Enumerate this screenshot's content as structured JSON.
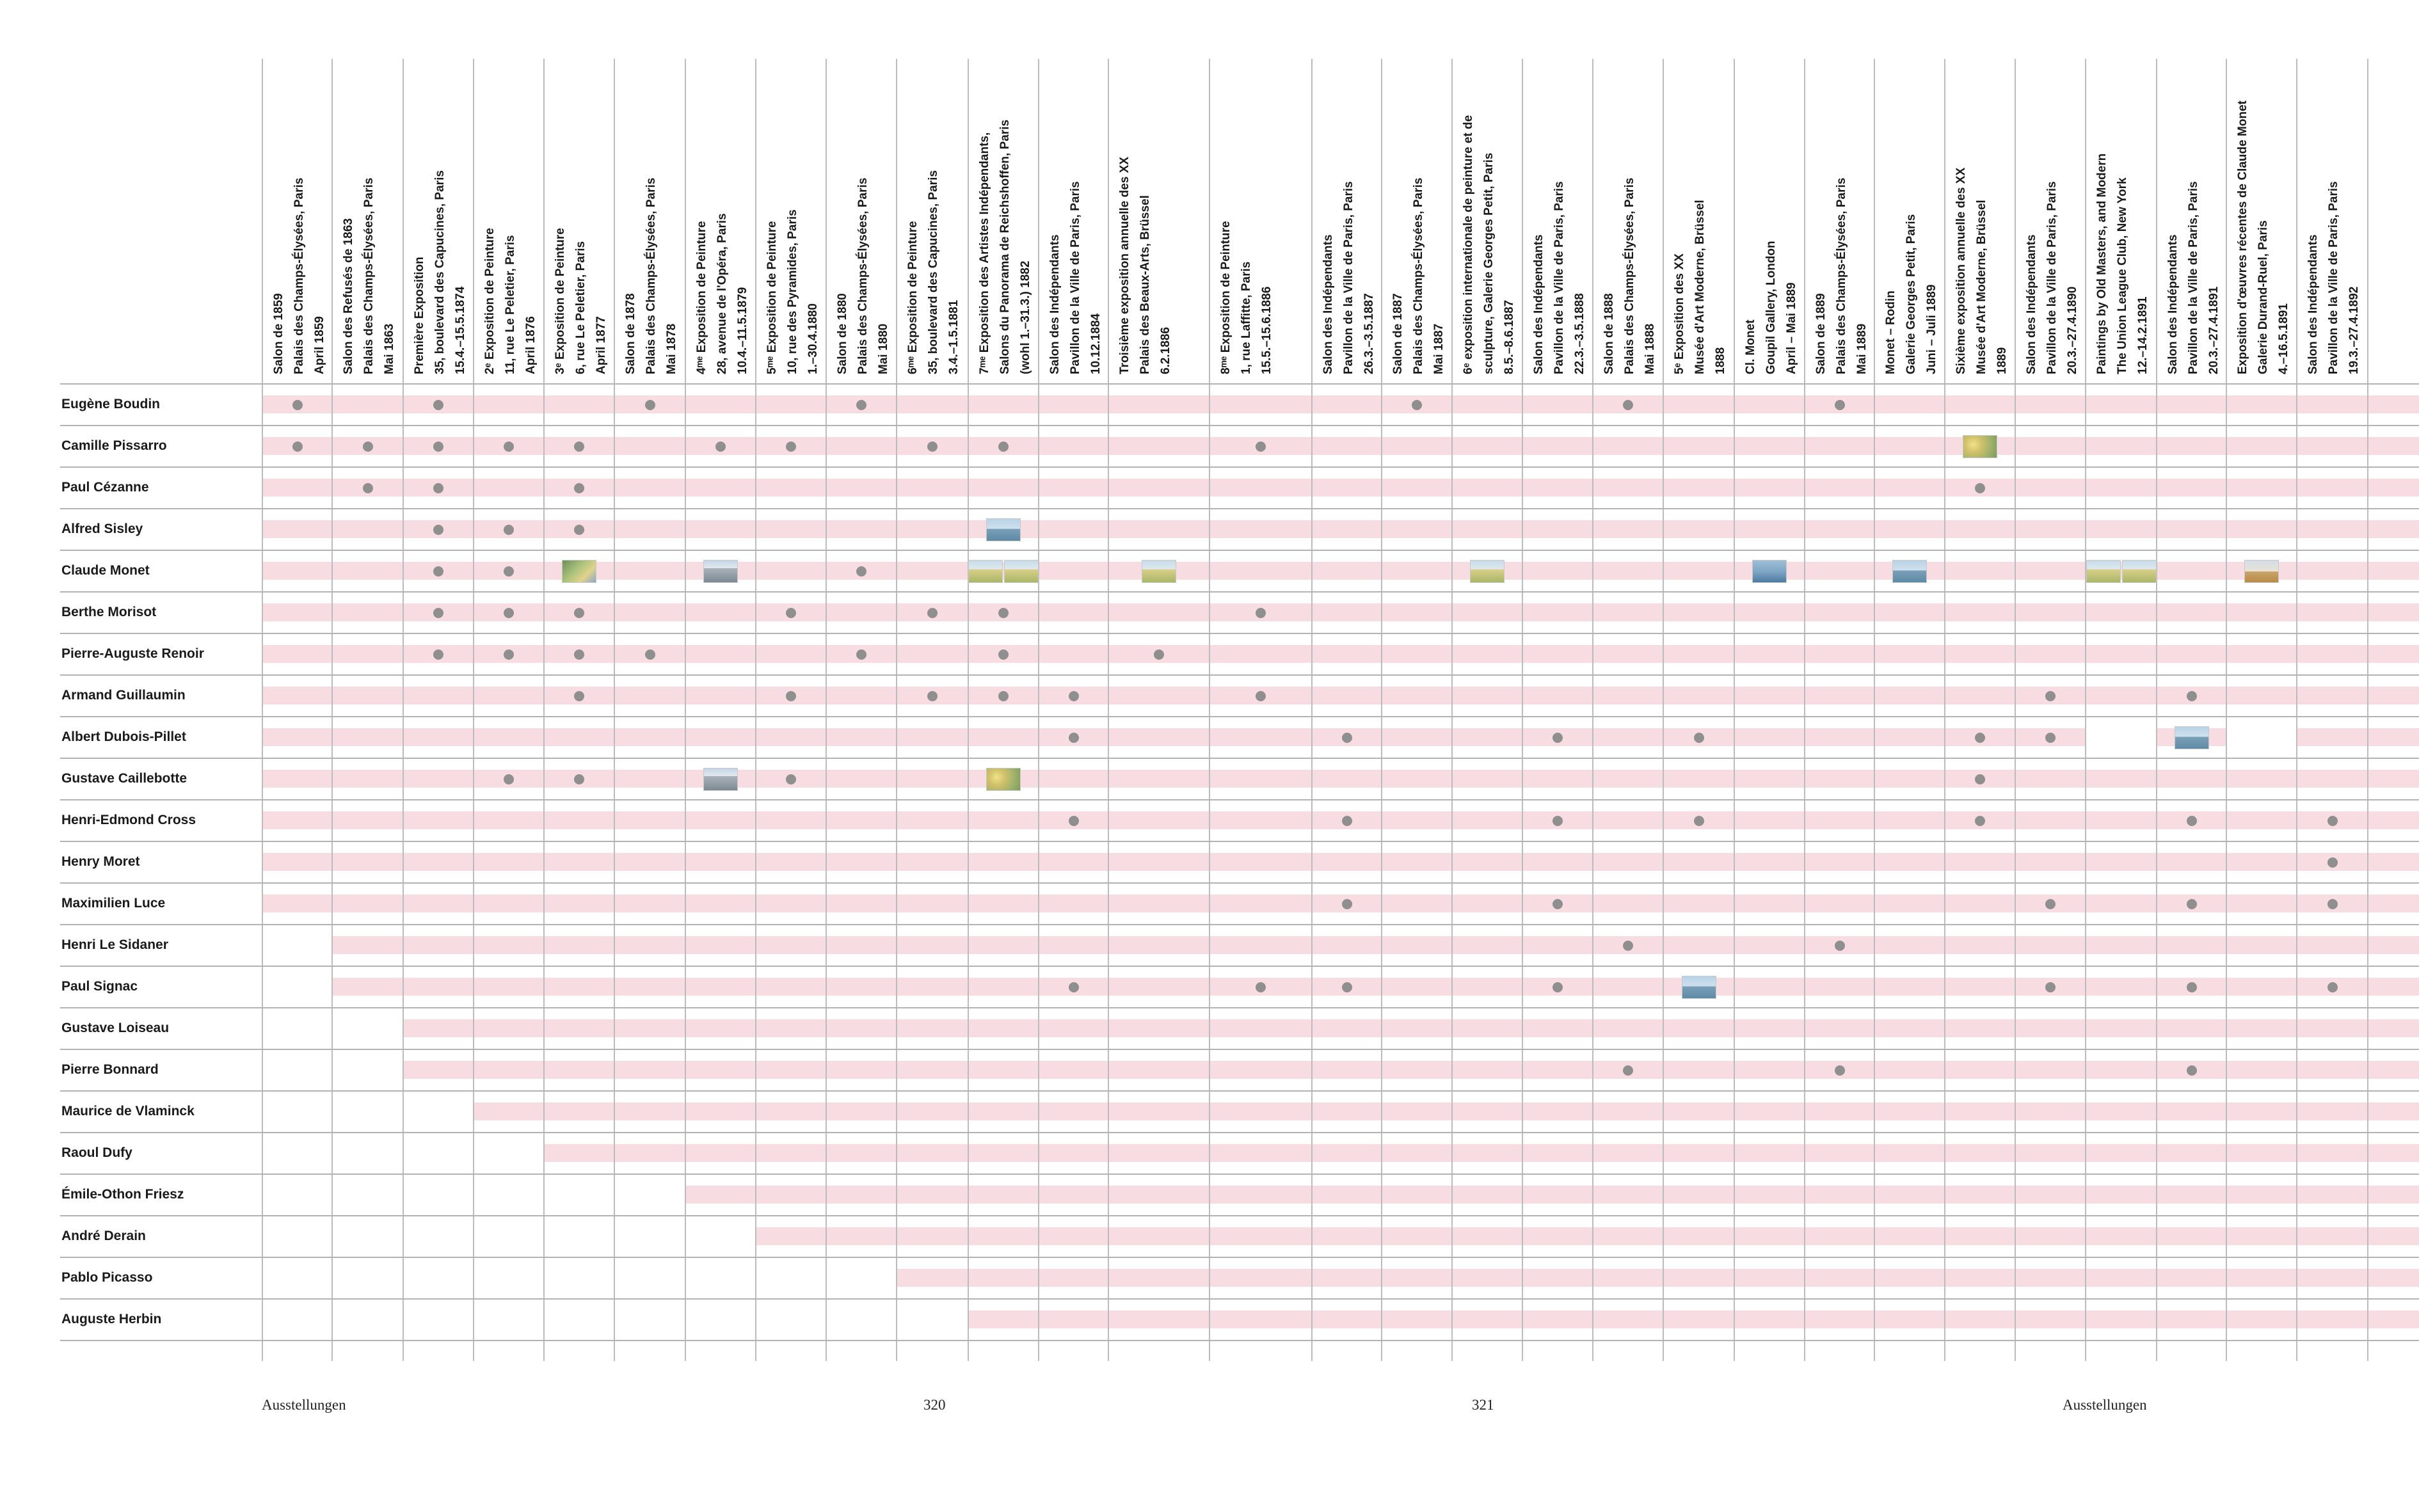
{
  "columns": [
    {
      "lines": [
        "Salon de 1859",
        "Palais des Champs-Élysées, Paris",
        "April 1859"
      ]
    },
    {
      "lines": [
        "Salon des Refusés de 1863",
        "Palais des Champs-Élysées, Paris",
        "Mai 1863"
      ]
    },
    {
      "lines": [
        "Première Exposition",
        "35, boulevard des Capucines, Paris",
        "15.4.–15.5.1874"
      ]
    },
    {
      "lines": [
        "2ᵉ Exposition de Peinture",
        "11, rue Le Peletier, Paris",
        "April 1876"
      ]
    },
    {
      "lines": [
        "3ᵉ Exposition de Peinture",
        "6, rue Le Peletier, Paris",
        "April 1877"
      ]
    },
    {
      "lines": [
        "Salon de 1878",
        "Palais des Champs-Élysées, Paris",
        "Mai 1878"
      ]
    },
    {
      "lines": [
        "4ᵐᵉ Exposition de Peinture",
        "28, avenue de l'Opéra, Paris",
        "10.4.–11.5.1879"
      ]
    },
    {
      "lines": [
        "5ᵐᵉ Exposition de Peinture",
        "10, rue des Pyramides, Paris",
        "1.–30.4.1880"
      ]
    },
    {
      "lines": [
        "Salon de 1880",
        "Palais des Champs-Élysées, Paris",
        "Mai 1880"
      ]
    },
    {
      "lines": [
        "6ᵐᵉ Exposition de Peinture",
        "35, boulevard des Capucines, Paris",
        "3.4.–1.5.1881"
      ]
    },
    {
      "lines": [
        "7ᵐᵉ Exposition des Artistes Indépendants,",
        "Salons du Panorama de Reichshoffen, Paris",
        "(wohl 1.–31.3.) 1882"
      ]
    },
    {
      "lines": [
        "Salon des Indépendants",
        "Pavillon de la Ville de Paris, Paris",
        "10.12.1884"
      ]
    },
    {
      "lines": [
        "Troisième exposition annuelle des XX",
        "Palais des Beaux-Arts, Brüssel",
        "6.2.1886"
      ]
    },
    {
      "lines": [
        "8ᵐᵉ Exposition de Peinture",
        "1, rue Laffitte, Paris",
        "15.5.–15.6.1886"
      ]
    },
    {
      "lines": [
        "Salon des Indépendants",
        "Pavillon de la Ville de Paris, Paris",
        "26.3.–3.5.1887"
      ]
    },
    {
      "lines": [
        "Salon de 1887",
        "Palais des Champs-Élysées, Paris",
        "Mai 1887"
      ]
    },
    {
      "lines": [
        "6ᵉ exposition internationale de peinture et de",
        "sculpture, Galerie Georges Petit, Paris",
        "8.5.–8.6.1887"
      ]
    },
    {
      "lines": [
        "Salon des Indépendants",
        "Pavillon de la Ville de Paris, Paris",
        "22.3.–3.5.1888"
      ]
    },
    {
      "lines": [
        "Salon de 1888",
        "Palais des Champs-Élysées, Paris",
        "Mai 1888"
      ]
    },
    {
      "lines": [
        "5ᵉ Exposition des XX",
        "Musée d'Art Moderne, Brüssel",
        "1888"
      ]
    },
    {
      "lines": [
        "Cl. Monet",
        "Goupil Gallery, London",
        "April – Mai 1889"
      ]
    },
    {
      "lines": [
        "Salon de 1889",
        "Palais des Champs-Élysées, Paris",
        "Mai 1889"
      ]
    },
    {
      "lines": [
        "Monet – Rodin",
        "Galerie Georges Petit, Paris",
        "Juni – Juli 1889"
      ]
    },
    {
      "lines": [
        "Sixième exposition annuelle des XX",
        "Musée d'Art Moderne, Brüssel",
        "1889"
      ]
    },
    {
      "lines": [
        "Salon des Indépendants",
        "Pavillon de la Ville de Paris, Paris",
        "20.3.–27.4.1890"
      ]
    },
    {
      "lines": [
        "Paintings by Old Masters, and Modern",
        "The Union League Club, New York",
        "12.–14.2.1891"
      ]
    },
    {
      "lines": [
        "Salon des Indépendants",
        "Pavillon de la Ville de Paris, Paris",
        "20.3.–27.4.1891"
      ]
    },
    {
      "lines": [
        "Exposition d'œuvres récentes de Claude Monet",
        "Galerie Durand-Ruel, Paris",
        "4.–16.5.1891"
      ]
    },
    {
      "lines": [
        "Salon des Indépendants",
        "Pavillon de la Ville de Paris, Paris",
        "19.3.–27.4.1892"
      ]
    }
  ],
  "artists": [
    "Eugène Boudin",
    "Camille Pissarro",
    "Paul Cézanne",
    "Alfred Sisley",
    "Claude Monet",
    "Berthe Morisot",
    "Pierre-Auguste Renoir",
    "Armand Guillaumin",
    "Albert Dubois-Pillet",
    "Gustave Caillebotte",
    "Henri-Edmond Cross",
    "Henry Moret",
    "Maximilien Luce",
    "Henri Le Sidaner",
    "Paul Signac",
    "Gustave Loiseau",
    "Pierre Bonnard",
    "Maurice de Vlaminck",
    "Raoul Dufy",
    "Émile-Othon Friesz",
    "André Derain",
    "Pablo Picasso",
    "Auguste Herbin"
  ],
  "band_start_column": [
    0,
    0,
    0,
    0,
    0,
    0,
    0,
    0,
    0,
    0,
    0,
    0,
    0,
    1,
    1,
    2,
    2,
    3,
    4,
    6,
    7,
    9,
    10
  ],
  "band_gaps": [
    {
      "row": 8,
      "columns": [
        25,
        27
      ]
    }
  ],
  "dots": {
    "0": [
      0,
      2,
      5,
      8,
      15,
      18,
      21
    ],
    "1": [
      0,
      1,
      2,
      3,
      4,
      6,
      7,
      9,
      10,
      13
    ],
    "2": [
      1,
      2,
      4,
      23
    ],
    "3": [
      2,
      3,
      4
    ],
    "4": [
      2,
      3,
      8
    ],
    "5": [
      2,
      3,
      4,
      7,
      9,
      10,
      13
    ],
    "6": [
      2,
      3,
      4,
      5,
      8,
      10,
      12
    ],
    "7": [
      4,
      7,
      9,
      10,
      11,
      13,
      24,
      26
    ],
    "8": [
      11,
      14,
      17,
      19,
      23,
      24
    ],
    "9": [
      3,
      4,
      7,
      23
    ],
    "10": [
      11,
      14,
      17,
      19,
      23,
      26,
      28
    ],
    "11": [
      28
    ],
    "12": [
      14,
      17,
      24,
      26,
      28
    ],
    "13": [
      18,
      21
    ],
    "14": [
      11,
      13,
      14,
      17,
      24,
      26,
      28
    ],
    "16": [
      18,
      21,
      26
    ]
  },
  "thumbnails": [
    {
      "row": 1,
      "column": 23,
      "style": "blossom",
      "count": 1
    },
    {
      "row": 3,
      "column": 10,
      "style": "sea",
      "count": 1
    },
    {
      "row": 4,
      "column": 4,
      "style": "garden",
      "count": 1
    },
    {
      "row": 4,
      "column": 6,
      "style": "city",
      "count": 1
    },
    {
      "row": 4,
      "column": 10,
      "style": "field",
      "count": 2
    },
    {
      "row": 4,
      "column": 12,
      "style": "field",
      "count": 1
    },
    {
      "row": 4,
      "column": 16,
      "style": "field",
      "count": 1
    },
    {
      "row": 4,
      "column": 20,
      "style": "water",
      "count": 1
    },
    {
      "row": 4,
      "column": 22,
      "style": "sea",
      "count": 1
    },
    {
      "row": 4,
      "column": 25,
      "style": "field",
      "count": 2
    },
    {
      "row": 4,
      "column": 27,
      "style": "hay",
      "count": 1
    },
    {
      "row": 8,
      "column": 26,
      "style": "sea",
      "count": 1
    },
    {
      "row": 9,
      "column": 6,
      "style": "city",
      "count": 1
    },
    {
      "row": 9,
      "column": 10,
      "style": "blossom",
      "count": 1
    },
    {
      "row": 14,
      "column": 19,
      "style": "sea",
      "count": 1
    }
  ],
  "footer": {
    "left_label": "Ausstellungen",
    "left_page": "320",
    "right_page": "321",
    "right_label": "Ausstellungen"
  }
}
